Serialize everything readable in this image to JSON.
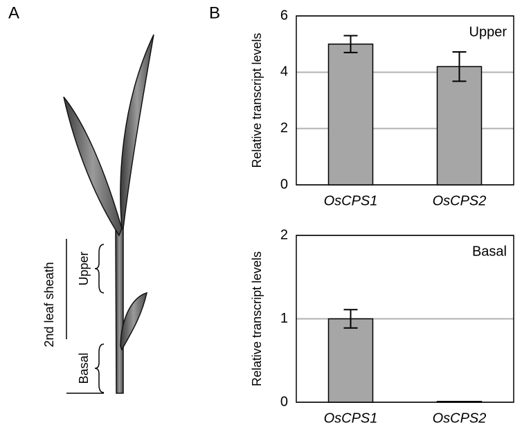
{
  "panel_labels": [
    "A",
    "B"
  ],
  "plant_labels": {
    "sheath": "2nd leaf sheath",
    "upper": "Upper",
    "basal": "Basal"
  },
  "chart_data": [
    {
      "type": "bar",
      "ylabel": "Relative transcript levels",
      "annotation": "Upper",
      "categories": [
        "OsCPS1",
        "OsCPS2"
      ],
      "values": [
        5.0,
        4.2
      ],
      "errors": [
        0.3,
        0.52
      ],
      "color": "#a6a6a6",
      "ylim": [
        0,
        6
      ],
      "yticks": [
        0,
        2,
        4,
        6
      ],
      "grid": true
    },
    {
      "type": "bar",
      "ylabel": "Relative transcript levels",
      "annotation": "Basal",
      "categories": [
        "OsCPS1",
        "OsCPS2"
      ],
      "values": [
        1.0,
        0.01
      ],
      "errors": [
        0.11,
        0
      ],
      "color": "#a6a6a6",
      "ylim": [
        0,
        2
      ],
      "yticks": [
        0,
        1,
        2
      ],
      "grid": true
    }
  ]
}
